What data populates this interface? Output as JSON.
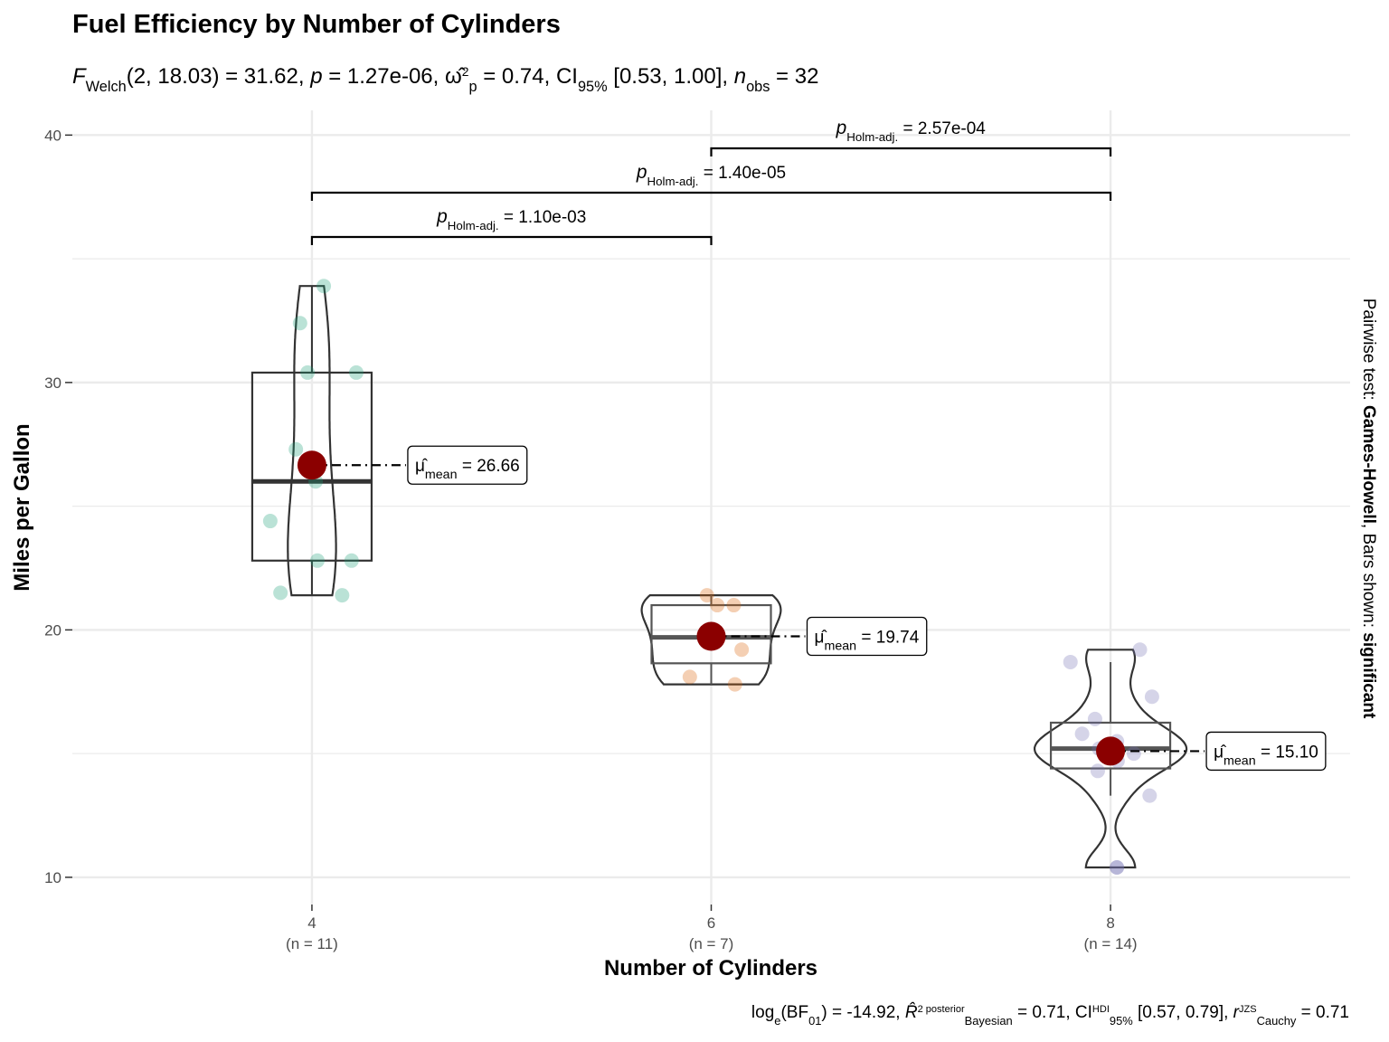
{
  "chart_data": {
    "type": "violin",
    "title": "Fuel Efficiency by Number of Cylinders",
    "subtitle": [
      {
        "k": "i",
        "text": "F"
      },
      {
        "k": "sub",
        "text": "Welch"
      },
      {
        "k": "n",
        "text": "(2, 18.03) = 31.62, "
      },
      {
        "k": "i",
        "text": "p"
      },
      {
        "k": "n",
        "text": " = 1.27e-06, "
      },
      {
        "k": "n",
        "text": "ω̂"
      },
      {
        "k": "sup",
        "text": "2"
      },
      {
        "k": "sub",
        "text": "p"
      },
      {
        "k": "n",
        "text": " = 0.74, CI"
      },
      {
        "k": "sub",
        "text": "95%"
      },
      {
        "k": "n",
        "text": " [0.53, 1.00], "
      },
      {
        "k": "i",
        "text": "n"
      },
      {
        "k": "sub",
        "text": "obs"
      },
      {
        "k": "n",
        "text": " = 32"
      }
    ],
    "caption": [
      {
        "k": "n",
        "text": "log"
      },
      {
        "k": "sub",
        "text": "e"
      },
      {
        "k": "n",
        "text": "(BF"
      },
      {
        "k": "sub",
        "text": "01"
      },
      {
        "k": "n",
        "text": ") = -14.92, "
      },
      {
        "k": "i",
        "text": "R̂"
      },
      {
        "k": "sup",
        "text": "2 posterior"
      },
      {
        "k": "sub",
        "text": "Bayesian"
      },
      {
        "k": "n",
        "text": " = 0.71, CI"
      },
      {
        "k": "sup",
        "text": "HDI"
      },
      {
        "k": "sub",
        "text": "95%"
      },
      {
        "k": "n",
        "text": " [0.57, 0.79], "
      },
      {
        "k": "i",
        "text": "r"
      },
      {
        "k": "sup",
        "text": "JZS"
      },
      {
        "k": "sub",
        "text": "Cauchy"
      },
      {
        "k": "n",
        "text": " = 0.71"
      }
    ],
    "side_note": [
      {
        "k": "n",
        "text": "Pairwise test: "
      },
      {
        "k": "b",
        "text": "Games-Howell"
      },
      {
        "k": "n",
        "text": ", Bars shown: "
      },
      {
        "k": "b",
        "text": "significant"
      }
    ],
    "x_label": "Number of Cylinders",
    "y_label": "Miles per Gallon",
    "categories": [
      "4",
      "6",
      "8"
    ],
    "count_labels": [
      "(n = 11)",
      "(n = 7)",
      "(n = 14)"
    ],
    "series": [
      {
        "name": "4",
        "color": "#1b9e77",
        "values": [
          22.8,
          24.4,
          22.8,
          32.4,
          30.4,
          33.9,
          21.5,
          27.3,
          26.0,
          30.4,
          21.4
        ]
      },
      {
        "name": "6",
        "color": "#d95f02",
        "values": [
          21.0,
          21.0,
          21.4,
          18.1,
          19.2,
          17.8,
          19.7
        ]
      },
      {
        "name": "8",
        "color": "#7570b3",
        "values": [
          18.7,
          14.3,
          16.4,
          17.3,
          15.2,
          10.4,
          10.4,
          14.7,
          15.5,
          15.2,
          13.3,
          19.2,
          15.8,
          15.0
        ]
      }
    ],
    "boxes": [
      {
        "whisker_low": 21.4,
        "q1": 22.8,
        "median": 26.0,
        "q3": 30.4,
        "whisker_high": 33.9
      },
      {
        "whisker_low": 17.8,
        "q1": 18.65,
        "median": 19.7,
        "q3": 21.0,
        "whisker_high": 21.4
      },
      {
        "whisker_low": 13.3,
        "q1": 14.4,
        "median": 15.2,
        "q3": 16.25,
        "whisker_high": 18.7
      }
    ],
    "means": {
      "color": "#8b0000",
      "values": [
        26.66,
        19.74,
        15.1
      ],
      "value_labels": [
        "26.66",
        "19.74",
        "15.10"
      ]
    },
    "mean_label": {
      "symbol": "μ̂",
      "subscript": "mean",
      "equals": " = "
    },
    "pairwise": {
      "symbol": "p",
      "subscript": "Holm-adj.",
      "equals": " = ",
      "comparisons": [
        {
          "groups": [
            "4",
            "6"
          ],
          "p_label": "1.10e-03"
        },
        {
          "groups": [
            "4",
            "8"
          ],
          "p_label": "1.40e-05"
        },
        {
          "groups": [
            "6",
            "8"
          ],
          "p_label": "2.57e-04"
        }
      ]
    },
    "ylim": [
      8.9,
      41.0
    ],
    "yticks": [
      10,
      20,
      30,
      40
    ],
    "minor_grid": [
      15,
      25,
      35
    ],
    "grid": true
  }
}
